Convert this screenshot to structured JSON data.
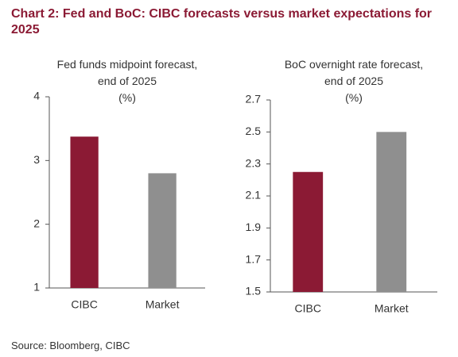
{
  "title": "Chart 2: Fed and BoC: CIBC forecasts versus market expectations for 2025",
  "source": "Source: Bloomberg, CIBC",
  "chart_data": [
    {
      "type": "bar",
      "title": "Fed funds midpoint forecast, end of 2025",
      "subtitle": "(%)",
      "categories": [
        "CIBC",
        "Market"
      ],
      "values": [
        3.375,
        2.8
      ],
      "colors": [
        "#8b1a34",
        "#8f8f8f"
      ],
      "ylim": [
        1,
        4
      ],
      "yticks": [
        1,
        2,
        3,
        4
      ],
      "grid": false
    },
    {
      "type": "bar",
      "title": "BoC overnight rate forecast, end of 2025",
      "subtitle": "(%)",
      "categories": [
        "CIBC",
        "Market"
      ],
      "values": [
        2.25,
        2.5
      ],
      "colors": [
        "#8b1a34",
        "#8f8f8f"
      ],
      "ylim": [
        1.5,
        2.7
      ],
      "yticks": [
        1.5,
        1.7,
        1.9,
        2.1,
        2.3,
        2.5,
        2.7
      ],
      "grid": false
    }
  ]
}
